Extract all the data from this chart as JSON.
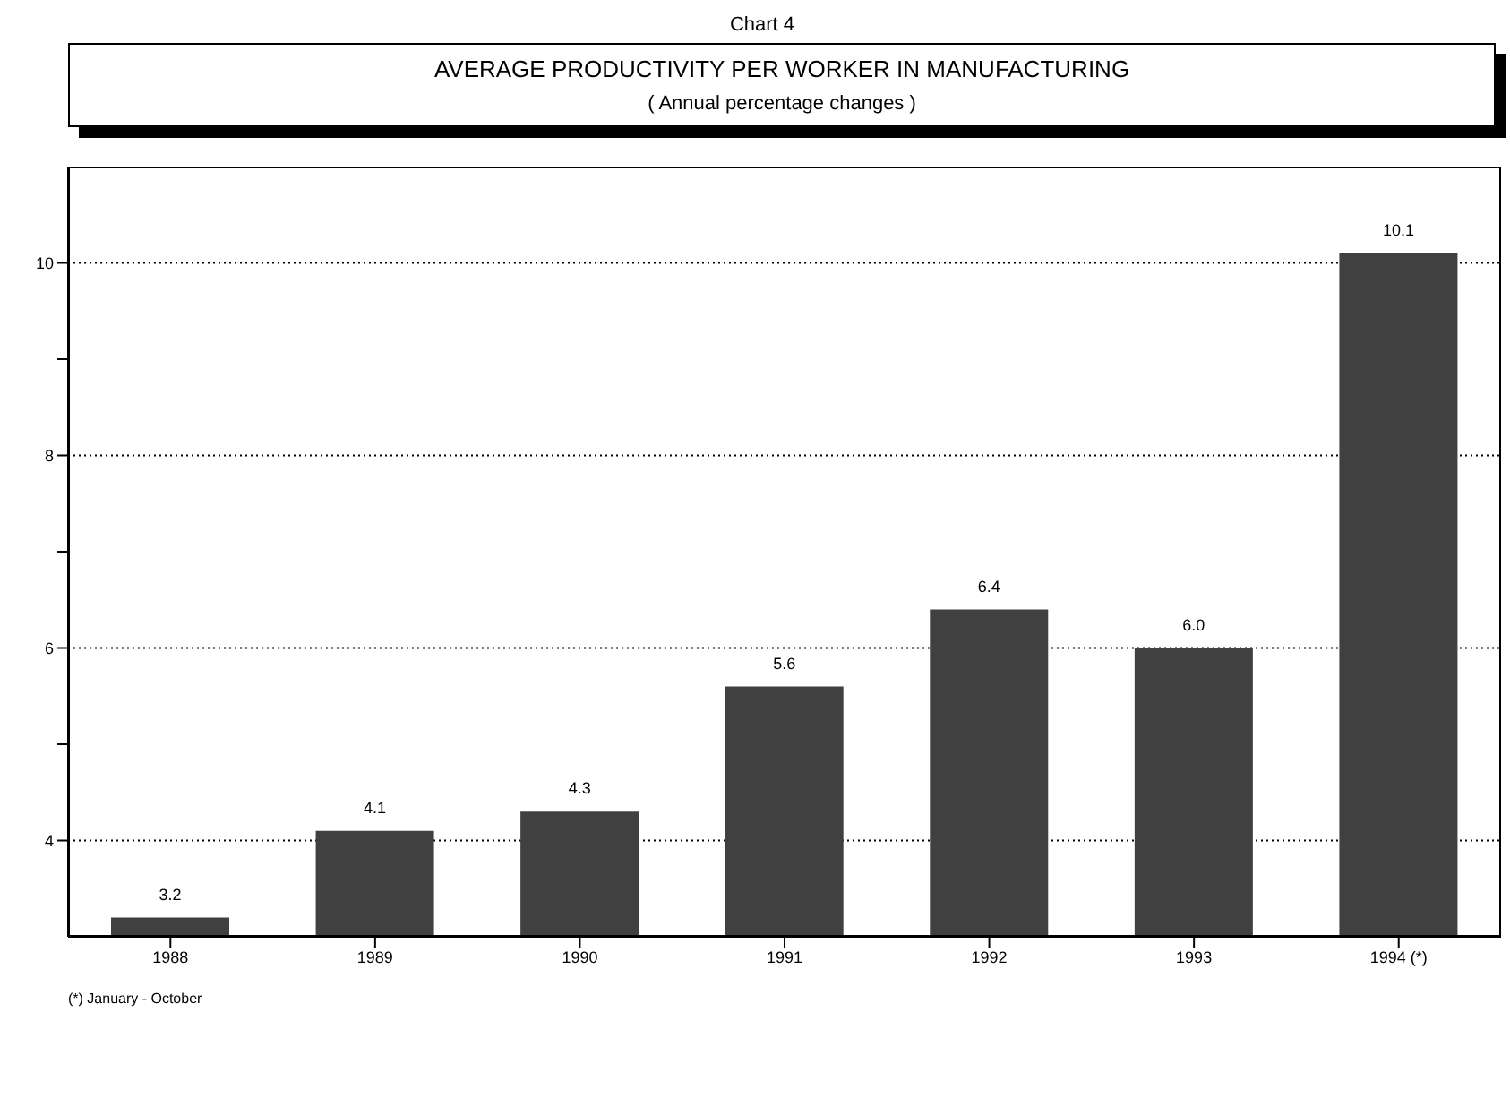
{
  "chart_data": {
    "type": "bar",
    "title": "Chart 4",
    "subtitle": "AVERAGE PRODUCTIVITY PER WORKER IN MANUFACTURING",
    "xlabel": null,
    "annotations": [
      "( Annual percentage changes )",
      "(*) January - October"
    ],
    "categories": [
      "1988",
      "1989",
      "1990",
      "1991",
      "1992",
      "1993",
      "1994 (*)"
    ],
    "values": [
      3.2,
      4.1,
      4.3,
      5.6,
      6.4,
      6.0,
      10.1
    ],
    "value_labels": [
      "3.2",
      "4.1",
      "4.3",
      "5.6",
      "6.4",
      "6.0",
      "10.1"
    ],
    "color": "#404040",
    "ylim": [
      3,
      11
    ],
    "yticks": [
      4,
      {
        "value": 5,
        "label": null
      },
      6,
      {
        "value": 7,
        "label": null
      },
      8,
      {
        "value": 9,
        "label": null
      },
      10
    ],
    "grid": "y"
  }
}
